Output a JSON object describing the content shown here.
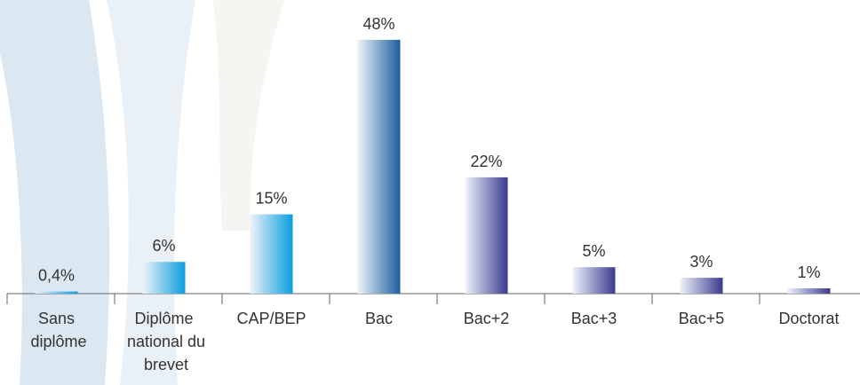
{
  "chart_data": {
    "type": "bar",
    "categories": [
      "Sans diplôme",
      "Diplôme national du brevet",
      "CAP/BEP",
      "Bac",
      "Bac+2",
      "Bac+3",
      "Bac+5",
      "Doctorat"
    ],
    "values": [
      0.4,
      6,
      15,
      48,
      22,
      5,
      3,
      1
    ],
    "value_labels": [
      "0,4%",
      "6%",
      "15%",
      "48%",
      "22%",
      "5%",
      "3%",
      "1%"
    ],
    "colors": [
      "#0a9ee0",
      "#0a9ee0",
      "#0a9ee0",
      "#1b5f9e",
      "#3a3b8f",
      "#3a3b8f",
      "#3a3b8f",
      "#3a3b8f"
    ]
  }
}
